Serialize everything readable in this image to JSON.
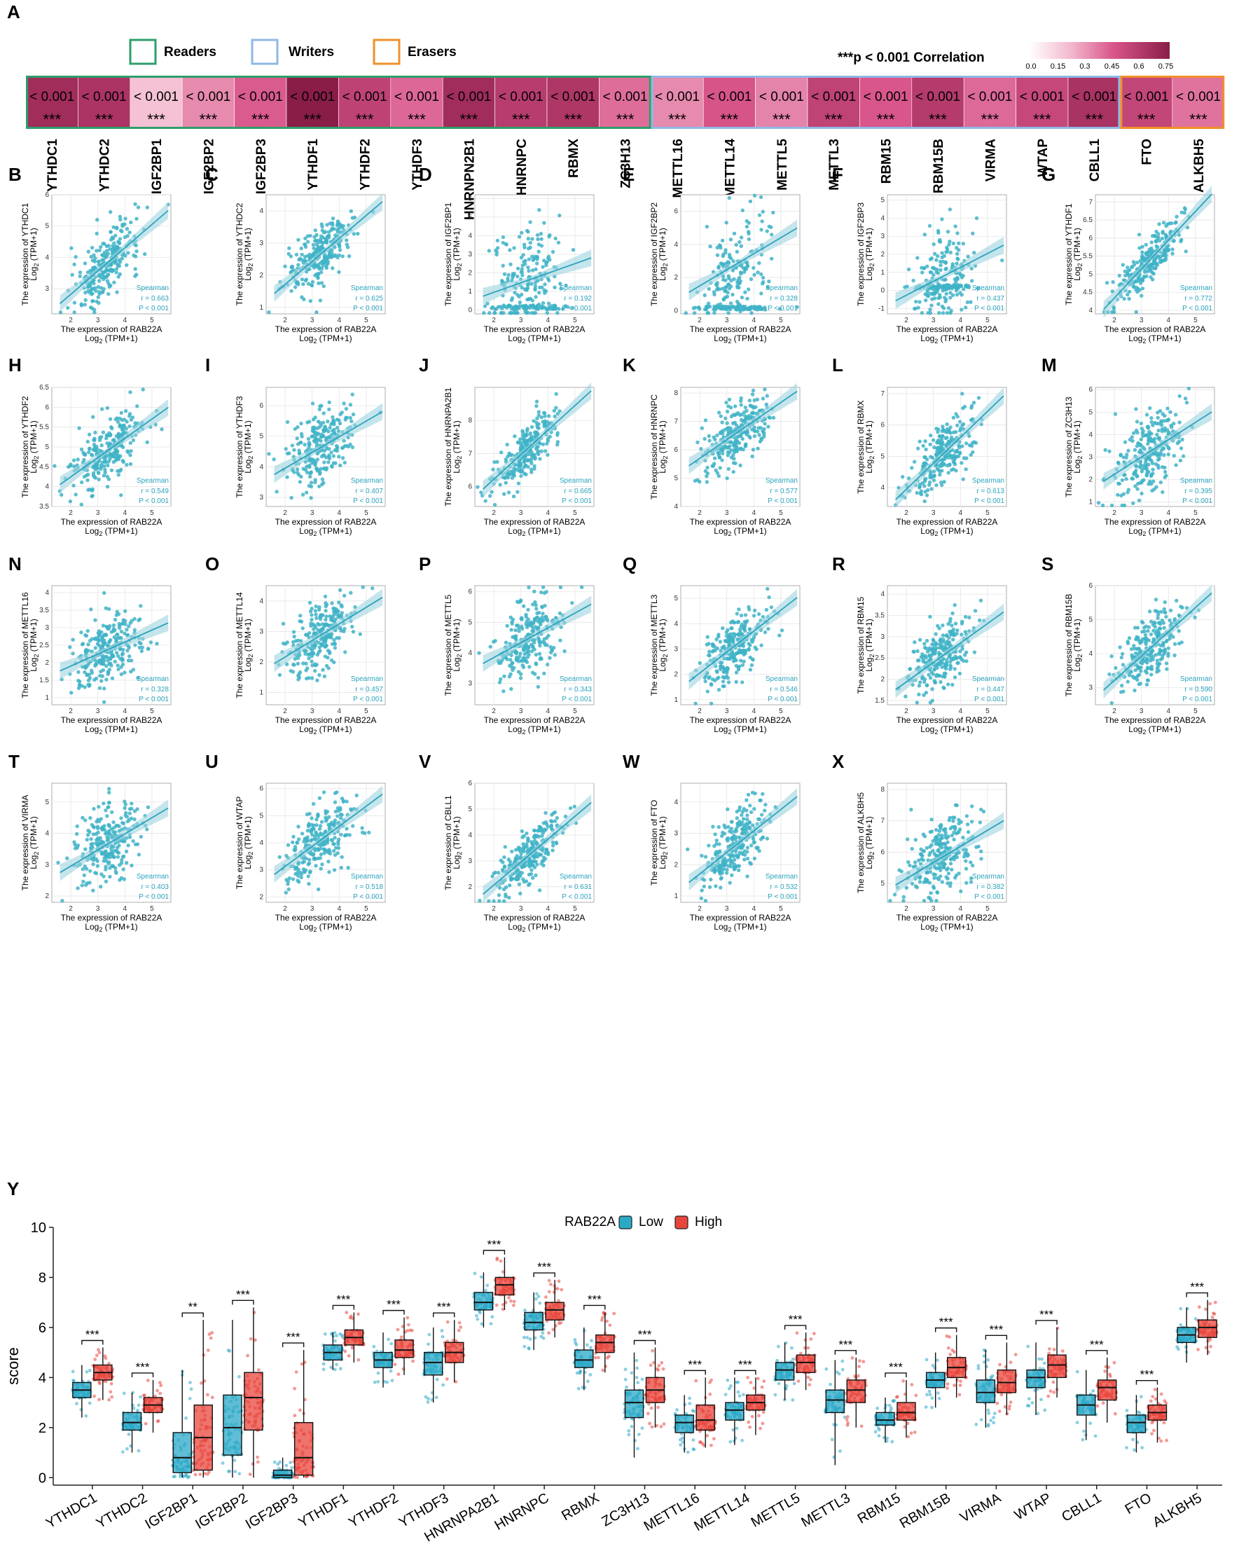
{
  "panel_labels": [
    "A",
    "B",
    "C",
    "D",
    "E",
    "F",
    "G",
    "H",
    "I",
    "J",
    "K",
    "L",
    "M",
    "N",
    "O",
    "P",
    "Q",
    "R",
    "S",
    "T",
    "U",
    "V",
    "W",
    "X",
    "Y"
  ],
  "legend_a": {
    "readers": "Readers",
    "writers": "Writers",
    "erasers": "Erasers",
    "readers_color": "#2e9e6b",
    "writers_color": "#8fb8e6",
    "erasers_color": "#f0902a",
    "sig_stars": "***",
    "sig_text": "p < 0.001 Correlation",
    "scale_ticks": [
      "0.0",
      "0.15",
      "0.3",
      "0.45",
      "0.6",
      "0.75"
    ]
  },
  "heatmap_cell_text": "< 0.001",
  "heatmap_stars": "***",
  "scatter_text": {
    "xlabel": "The expression of RAB22A",
    "log_prefix": "Log",
    "log_sub": "2",
    "log_suffix": " (TPM+1)",
    "ylabel_prefix": "The expression of ",
    "method": "Spearman",
    "p_text": "P < 0.001",
    "r_prefix": "r = ",
    "point_color": "#3fb3c7"
  },
  "boxplot_text": {
    "legend_title": "RAB22A",
    "low": "Low",
    "high": "High",
    "low_color": "#2aa8c7",
    "high_color": "#e8453c",
    "ylabel": "score"
  },
  "chart_data": [
    {
      "type": "heatmap",
      "title": "Correlation",
      "genes": [
        "YTHDC1",
        "YTHDC2",
        "IGF2BP1",
        "IGF2BP2",
        "IGF2BP3",
        "YTHDF1",
        "YTHDF2",
        "YTHDF3",
        "HNRNPN2B1",
        "HNRNPC",
        "RBMX",
        "ZC3H13",
        "METTL16",
        "METTL14",
        "METTL5",
        "METTL3",
        "RBM15",
        "RBM15B",
        "VIRMA",
        "WTAP",
        "CBLL1",
        "FTO",
        "ALKBH5"
      ],
      "groups": [
        "Readers",
        "Readers",
        "Readers",
        "Readers",
        "Readers",
        "Readers",
        "Readers",
        "Readers",
        "Readers",
        "Readers",
        "Readers",
        "Readers",
        "Writers",
        "Writers",
        "Writers",
        "Writers",
        "Writers",
        "Writers",
        "Writers",
        "Writers",
        "Writers",
        "Erasers",
        "Erasers"
      ],
      "correlation": [
        0.663,
        0.625,
        0.192,
        0.328,
        0.437,
        0.772,
        0.549,
        0.407,
        0.665,
        0.577,
        0.613,
        0.395,
        0.328,
        0.457,
        0.343,
        0.546,
        0.447,
        0.59,
        0.403,
        0.518,
        0.631,
        0.532,
        0.382
      ],
      "p_values": [
        "< 0.001",
        "< 0.001",
        "< 0.001",
        "< 0.001",
        "< 0.001",
        "< 0.001",
        "< 0.001",
        "< 0.001",
        "< 0.001",
        "< 0.001",
        "< 0.001",
        "< 0.001",
        "< 0.001",
        "< 0.001",
        "< 0.001",
        "< 0.001",
        "< 0.001",
        "< 0.001",
        "< 0.001",
        "< 0.001",
        "< 0.001",
        "< 0.001",
        "< 0.001"
      ],
      "color_range": [
        0.0,
        0.75
      ]
    },
    {
      "type": "scatter",
      "xlabel": "The expression of RAB22A",
      "x_range": [
        1.3,
        5.7
      ],
      "x_ticks": [
        2,
        3,
        4,
        5
      ],
      "panels": [
        {
          "label": "B",
          "gene": "YTHDC1",
          "r": "0.663",
          "ylim": [
            2.2,
            6.0
          ],
          "yticks": [
            3,
            4,
            5,
            6
          ],
          "y0": 2.6,
          "y1": 5.2,
          "noise": 0.5
        },
        {
          "label": "C",
          "gene": "YTHDC2",
          "r": "0.625",
          "ylim": [
            0.8,
            4.5
          ],
          "yticks": [
            1,
            2,
            3,
            4
          ],
          "y0": 1.5,
          "y1": 4.0,
          "noise": 0.45
        },
        {
          "label": "D",
          "gene": "IGF2BP1",
          "r": "0.192",
          "ylim": [
            -0.2,
            6.2
          ],
          "yticks": [
            0,
            1,
            2,
            3,
            4,
            5,
            6
          ],
          "y0": 0.8,
          "y1": 2.6,
          "noise": 1.6
        },
        {
          "label": "E",
          "gene": "IGF2BP2",
          "r": "0.328",
          "ylim": [
            -0.2,
            7.0
          ],
          "yticks": [
            0,
            2,
            4,
            6
          ],
          "y0": 1.2,
          "y1": 4.6,
          "noise": 1.5
        },
        {
          "label": "F",
          "gene": "IGF2BP3",
          "r": "0.437",
          "ylim": [
            -1.3,
            5.3
          ],
          "yticks": [
            -1,
            0,
            1,
            2,
            3,
            4,
            5
          ],
          "y0": -0.5,
          "y1": 2.2,
          "noise": 1.2
        },
        {
          "label": "G",
          "gene": "YTHDF1",
          "r": "0.772",
          "ylim": [
            3.9,
            7.2
          ],
          "yticks": [
            4.0,
            4.5,
            5.0,
            5.5,
            6.0,
            6.5,
            7.0
          ],
          "y0": 4.1,
          "y1": 6.9,
          "noise": 0.3
        },
        {
          "label": "H",
          "gene": "YTHDF2",
          "r": "0.549",
          "ylim": [
            3.5,
            6.5
          ],
          "yticks": [
            3.5,
            4.0,
            4.5,
            5.0,
            5.5,
            6.0,
            6.5
          ],
          "y0": 4.1,
          "y1": 5.8,
          "noise": 0.4
        },
        {
          "label": "I",
          "gene": "YTHDF3",
          "r": "0.407",
          "ylim": [
            2.7,
            6.6
          ],
          "yticks": [
            3,
            4,
            5,
            6
          ],
          "y0": 3.8,
          "y1": 5.6,
          "noise": 0.6
        },
        {
          "label": "J",
          "gene": "HNRNPA2B1",
          "r": "0.665",
          "ylim": [
            5.4,
            9.0
          ],
          "yticks": [
            6,
            7,
            8
          ],
          "y0": 6.0,
          "y1": 8.6,
          "noise": 0.4
        },
        {
          "label": "K",
          "gene": "HNRNPC",
          "r": "0.577",
          "ylim": [
            4.0,
            8.2
          ],
          "yticks": [
            4,
            5,
            6,
            7,
            8
          ],
          "y0": 5.5,
          "y1": 7.8,
          "noise": 0.5
        },
        {
          "label": "L",
          "gene": "RBMX",
          "r": "0.613",
          "ylim": [
            3.4,
            7.2
          ],
          "yticks": [
            4,
            5,
            6,
            7
          ],
          "y0": 3.7,
          "y1": 6.6,
          "noise": 0.5
        },
        {
          "label": "M",
          "gene": "ZC3H13",
          "r": "0.395",
          "ylim": [
            0.8,
            6.1
          ],
          "yticks": [
            1,
            2,
            3,
            4,
            5,
            6
          ],
          "y0": 2.0,
          "y1": 4.7,
          "noise": 0.8
        },
        {
          "label": "N",
          "gene": "METTL16",
          "r": "0.328",
          "ylim": [
            0.8,
            4.2
          ],
          "yticks": [
            1.0,
            1.5,
            2.0,
            2.5,
            3.0,
            3.5,
            4.0
          ],
          "y0": 1.8,
          "y1": 3.0,
          "noise": 0.5
        },
        {
          "label": "O",
          "gene": "METTL14",
          "r": "0.457",
          "ylim": [
            0.6,
            4.5
          ],
          "yticks": [
            1,
            2,
            3,
            4
          ],
          "y0": 2.0,
          "y1": 3.9,
          "noise": 0.5
        },
        {
          "label": "P",
          "gene": "METTL5",
          "r": "0.343",
          "ylim": [
            2.3,
            6.2
          ],
          "yticks": [
            3,
            4,
            5,
            6
          ],
          "y0": 3.7,
          "y1": 5.4,
          "noise": 0.6
        },
        {
          "label": "Q",
          "gene": "METTL3",
          "r": "0.546",
          "ylim": [
            0.8,
            5.5
          ],
          "yticks": [
            1,
            2,
            3,
            4,
            5
          ],
          "y0": 1.8,
          "y1": 4.7,
          "noise": 0.6
        },
        {
          "label": "R",
          "gene": "RBM15",
          "r": "0.447",
          "ylim": [
            1.4,
            4.2
          ],
          "yticks": [
            1.5,
            2.0,
            2.5,
            3.0,
            3.5,
            4.0
          ],
          "y0": 1.8,
          "y1": 3.4,
          "noise": 0.4
        },
        {
          "label": "S",
          "gene": "RBM15B",
          "r": "0.590",
          "ylim": [
            2.5,
            6.0
          ],
          "yticks": [
            3,
            4,
            5,
            6
          ],
          "y0": 3.0,
          "y1": 5.5,
          "noise": 0.5
        },
        {
          "label": "T",
          "gene": "VIRMA",
          "r": "0.403",
          "ylim": [
            1.8,
            5.6
          ],
          "yticks": [
            2,
            3,
            4,
            5
          ],
          "y0": 2.8,
          "y1": 4.6,
          "noise": 0.6
        },
        {
          "label": "U",
          "gene": "WTAP",
          "r": "0.518",
          "ylim": [
            1.8,
            6.2
          ],
          "yticks": [
            2,
            3,
            4,
            5,
            6
          ],
          "y0": 2.9,
          "y1": 5.5,
          "noise": 0.6
        },
        {
          "label": "V",
          "gene": "CBLL1",
          "r": "0.631",
          "ylim": [
            1.4,
            6.0
          ],
          "yticks": [
            2,
            3,
            4,
            5,
            6
          ],
          "y0": 1.8,
          "y1": 4.9,
          "noise": 0.5
        },
        {
          "label": "W",
          "gene": "FTO",
          "r": "0.532",
          "ylim": [
            0.8,
            4.6
          ],
          "yticks": [
            1,
            2,
            3,
            4
          ],
          "y0": 1.5,
          "y1": 3.9,
          "noise": 0.5
        },
        {
          "label": "X",
          "gene": "ALKBH5",
          "r": "0.382",
          "ylim": [
            4.4,
            8.2
          ],
          "yticks": [
            5,
            6,
            7,
            8
          ],
          "y0": 5.0,
          "y1": 6.8,
          "noise": 0.6
        }
      ]
    },
    {
      "type": "box",
      "ylabel": "score",
      "ylim": [
        -0.3,
        10
      ],
      "yticks": [
        0,
        2,
        4,
        6,
        8,
        10
      ],
      "legend_title": "RAB22A",
      "series_names": [
        "Low",
        "High"
      ],
      "categories": [
        "YTHDC1",
        "YTHDC2",
        "IGF2BP1",
        "IGF2BP2",
        "IGF2BP3",
        "YTHDF1",
        "YTHDF2",
        "YTHDF3",
        "HNRNPA2B1",
        "HNRNPC",
        "RBMX",
        "ZC3H13",
        "METTL16",
        "METTL14",
        "METTL5",
        "METTL3",
        "RBM15",
        "RBM15B",
        "VIRMA",
        "WTAP",
        "CBLL1",
        "FTO",
        "ALKBH5"
      ],
      "significance": [
        "***",
        "***",
        "**",
        "***",
        "***",
        "***",
        "***",
        "***",
        "***",
        "***",
        "***",
        "***",
        "***",
        "***",
        "***",
        "***",
        "***",
        "***",
        "***",
        "***",
        "***",
        "***",
        "***"
      ],
      "low": [
        {
          "min": 2.4,
          "q1": 3.2,
          "median": 3.5,
          "q3": 3.8,
          "max": 4.5
        },
        {
          "min": 1.0,
          "q1": 1.9,
          "median": 2.2,
          "q3": 2.6,
          "max": 3.4
        },
        {
          "min": 0.0,
          "q1": 0.2,
          "median": 0.8,
          "q3": 1.8,
          "max": 4.3
        },
        {
          "min": 0.0,
          "q1": 0.9,
          "median": 2.0,
          "q3": 3.3,
          "max": 6.3
        },
        {
          "min": 0.0,
          "q1": 0.0,
          "median": 0.1,
          "q3": 0.3,
          "max": 0.8
        },
        {
          "min": 4.3,
          "q1": 4.7,
          "median": 5.0,
          "q3": 5.3,
          "max": 5.8
        },
        {
          "min": 3.6,
          "q1": 4.4,
          "median": 4.7,
          "q3": 5.0,
          "max": 5.8
        },
        {
          "min": 3.0,
          "q1": 4.1,
          "median": 4.6,
          "q3": 5.0,
          "max": 6.0
        },
        {
          "min": 6.0,
          "q1": 6.7,
          "median": 7.0,
          "q3": 7.4,
          "max": 8.2
        },
        {
          "min": 5.1,
          "q1": 5.9,
          "median": 6.2,
          "q3": 6.6,
          "max": 7.4
        },
        {
          "min": 3.5,
          "q1": 4.4,
          "median": 4.7,
          "q3": 5.1,
          "max": 6.0
        },
        {
          "min": 0.8,
          "q1": 2.4,
          "median": 3.0,
          "q3": 3.5,
          "max": 5.0
        },
        {
          "min": 1.0,
          "q1": 1.8,
          "median": 2.2,
          "q3": 2.5,
          "max": 3.3
        },
        {
          "min": 1.3,
          "q1": 2.3,
          "median": 2.7,
          "q3": 3.0,
          "max": 4.0
        },
        {
          "min": 3.1,
          "q1": 3.9,
          "median": 4.3,
          "q3": 4.6,
          "max": 5.4
        },
        {
          "min": 0.5,
          "q1": 2.6,
          "median": 3.1,
          "q3": 3.5,
          "max": 4.7
        },
        {
          "min": 1.4,
          "q1": 2.1,
          "median": 2.3,
          "q3": 2.6,
          "max": 3.2
        },
        {
          "min": 2.8,
          "q1": 3.6,
          "median": 3.9,
          "q3": 4.2,
          "max": 5.0
        },
        {
          "min": 2.0,
          "q1": 3.0,
          "median": 3.4,
          "q3": 3.9,
          "max": 5.1
        },
        {
          "min": 2.5,
          "q1": 3.6,
          "median": 4.0,
          "q3": 4.3,
          "max": 5.4
        },
        {
          "min": 1.5,
          "q1": 2.5,
          "median": 2.9,
          "q3": 3.3,
          "max": 4.3
        },
        {
          "min": 1.0,
          "q1": 1.8,
          "median": 2.2,
          "q3": 2.5,
          "max": 3.3
        },
        {
          "min": 4.6,
          "q1": 5.4,
          "median": 5.7,
          "q3": 6.0,
          "max": 6.8
        }
      ],
      "high": [
        {
          "min": 3.1,
          "q1": 3.9,
          "median": 4.2,
          "q3": 4.5,
          "max": 5.2
        },
        {
          "min": 1.8,
          "q1": 2.6,
          "median": 2.9,
          "q3": 3.2,
          "max": 3.9
        },
        {
          "min": 0.0,
          "q1": 0.3,
          "median": 1.6,
          "q3": 2.9,
          "max": 6.3
        },
        {
          "min": 0.0,
          "q1": 1.9,
          "median": 3.2,
          "q3": 4.2,
          "max": 6.8
        },
        {
          "min": 0.0,
          "q1": 0.1,
          "median": 0.8,
          "q3": 2.2,
          "max": 5.1
        },
        {
          "min": 4.6,
          "q1": 5.3,
          "median": 5.6,
          "q3": 5.9,
          "max": 6.6
        },
        {
          "min": 4.1,
          "q1": 4.8,
          "median": 5.1,
          "q3": 5.5,
          "max": 6.4
        },
        {
          "min": 3.8,
          "q1": 4.6,
          "median": 5.0,
          "q3": 5.4,
          "max": 6.3
        },
        {
          "min": 6.7,
          "q1": 7.3,
          "median": 7.7,
          "q3": 8.0,
          "max": 8.8
        },
        {
          "min": 5.6,
          "q1": 6.3,
          "median": 6.7,
          "q3": 7.0,
          "max": 7.9
        },
        {
          "min": 4.2,
          "q1": 5.0,
          "median": 5.4,
          "q3": 5.7,
          "max": 6.6
        },
        {
          "min": 2.0,
          "q1": 3.0,
          "median": 3.5,
          "q3": 4.0,
          "max": 5.2
        },
        {
          "min": 1.2,
          "q1": 1.9,
          "median": 2.3,
          "q3": 2.9,
          "max": 4.0
        },
        {
          "min": 1.7,
          "q1": 2.7,
          "median": 3.0,
          "q3": 3.3,
          "max": 4.0
        },
        {
          "min": 3.5,
          "q1": 4.2,
          "median": 4.6,
          "q3": 4.9,
          "max": 5.8
        },
        {
          "min": 2.0,
          "q1": 3.0,
          "median": 3.5,
          "q3": 3.9,
          "max": 4.8
        },
        {
          "min": 1.6,
          "q1": 2.3,
          "median": 2.6,
          "q3": 3.0,
          "max": 3.9
        },
        {
          "min": 3.2,
          "q1": 4.0,
          "median": 4.4,
          "q3": 4.8,
          "max": 5.7
        },
        {
          "min": 2.5,
          "q1": 3.4,
          "median": 3.8,
          "q3": 4.3,
          "max": 5.4
        },
        {
          "min": 3.2,
          "q1": 4.0,
          "median": 4.5,
          "q3": 4.9,
          "max": 6.0
        },
        {
          "min": 2.2,
          "q1": 3.1,
          "median": 3.6,
          "q3": 3.9,
          "max": 4.8
        },
        {
          "min": 1.4,
          "q1": 2.3,
          "median": 2.6,
          "q3": 2.9,
          "max": 3.6
        },
        {
          "min": 4.9,
          "q1": 5.6,
          "median": 6.0,
          "q3": 6.3,
          "max": 7.1
        }
      ]
    }
  ]
}
